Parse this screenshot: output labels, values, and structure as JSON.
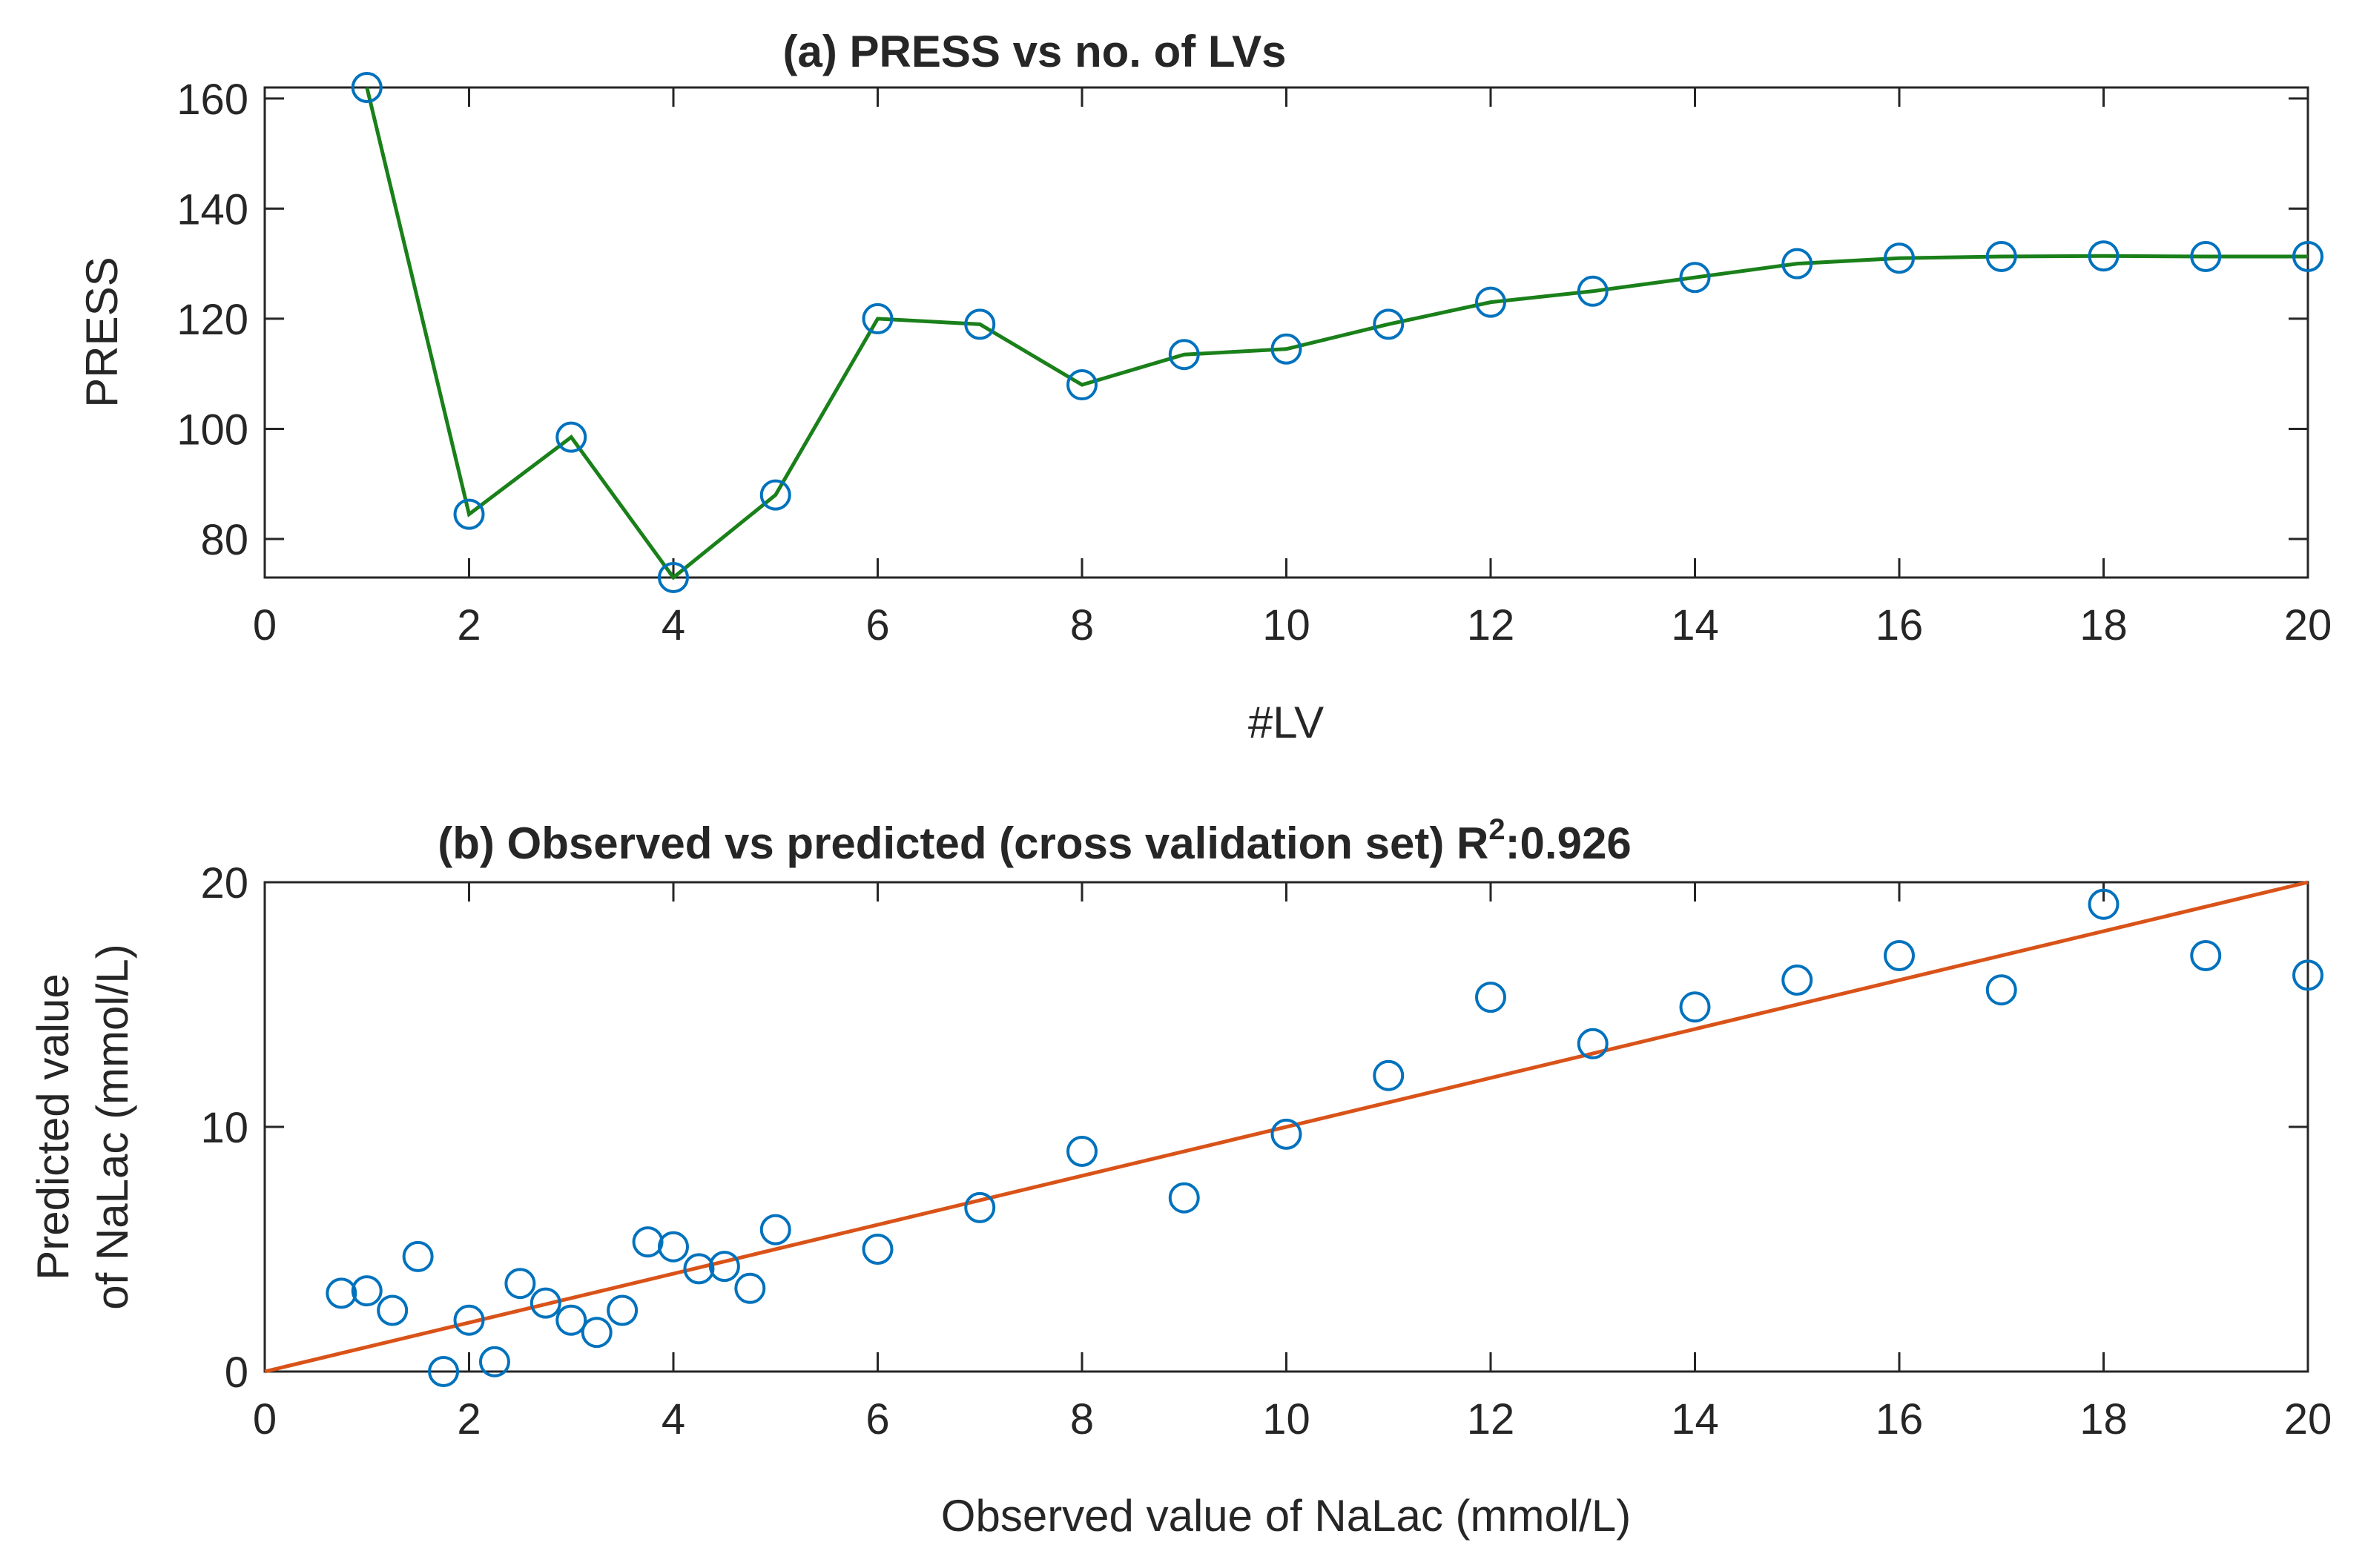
{
  "chart_data": [
    {
      "type": "line",
      "title": "(a) PRESS vs no. of LVs",
      "xlabel": "#LV",
      "ylabel": "PRESS",
      "xlim": [
        0,
        20
      ],
      "ylim": [
        73,
        162
      ],
      "xticks": [
        0,
        2,
        4,
        6,
        8,
        10,
        12,
        14,
        16,
        18,
        20
      ],
      "yticks": [
        80,
        100,
        120,
        140,
        160
      ],
      "grid": false,
      "colors": {
        "line": "#1a801a",
        "marker": "#0072bd"
      },
      "series": [
        {
          "x": [
            1,
            2,
            3,
            4,
            5,
            6,
            7,
            8,
            9,
            10,
            11,
            12,
            13,
            14,
            15,
            16,
            17,
            18,
            19,
            20
          ],
          "y": [
            162,
            84.5,
            98.5,
            73,
            88,
            120,
            119,
            108,
            113.5,
            114.5,
            119,
            123,
            125,
            127.5,
            130,
            131,
            131.3,
            131.4,
            131.3,
            131.3
          ]
        }
      ]
    },
    {
      "type": "scatter",
      "title_main": "(b) Observed vs predicted (cross validation set) R",
      "title_sup": "2",
      "title_tail": ":0.926",
      "xlabel": "Observed value of NaLac (mmol/L)",
      "ylabel_lines": [
        "Predicted value",
        "of NaLac (mmol/L)"
      ],
      "xlim": [
        0,
        20
      ],
      "ylim": [
        0,
        20
      ],
      "xticks": [
        0,
        2,
        4,
        6,
        8,
        10,
        12,
        14,
        16,
        18,
        20
      ],
      "yticks": [
        0,
        10,
        20
      ],
      "grid": false,
      "colors": {
        "marker": "#0072bd",
        "fit": "#d95319"
      },
      "fit_line": {
        "x": [
          0,
          20
        ],
        "y": [
          0,
          20
        ]
      },
      "points": {
        "x": [
          0.75,
          1.0,
          1.25,
          1.5,
          1.75,
          2.0,
          2.25,
          2.5,
          2.75,
          3.0,
          3.25,
          3.5,
          3.75,
          4.0,
          4.25,
          4.5,
          4.75,
          5,
          6,
          7,
          8,
          9,
          10,
          11,
          12,
          13,
          14,
          15,
          16,
          17,
          18,
          19,
          20
        ],
        "y": [
          3.2,
          3.3,
          2.5,
          4.7,
          0.0,
          2.1,
          0.4,
          3.6,
          2.8,
          2.1,
          1.6,
          2.5,
          5.3,
          5.1,
          4.2,
          4.3,
          3.4,
          5.8,
          5.0,
          6.7,
          9.0,
          7.1,
          9.7,
          12.1,
          15.3,
          13.4,
          14.9,
          16.0,
          17.0,
          15.6,
          19.1,
          17.0,
          16.2
        ]
      }
    }
  ]
}
